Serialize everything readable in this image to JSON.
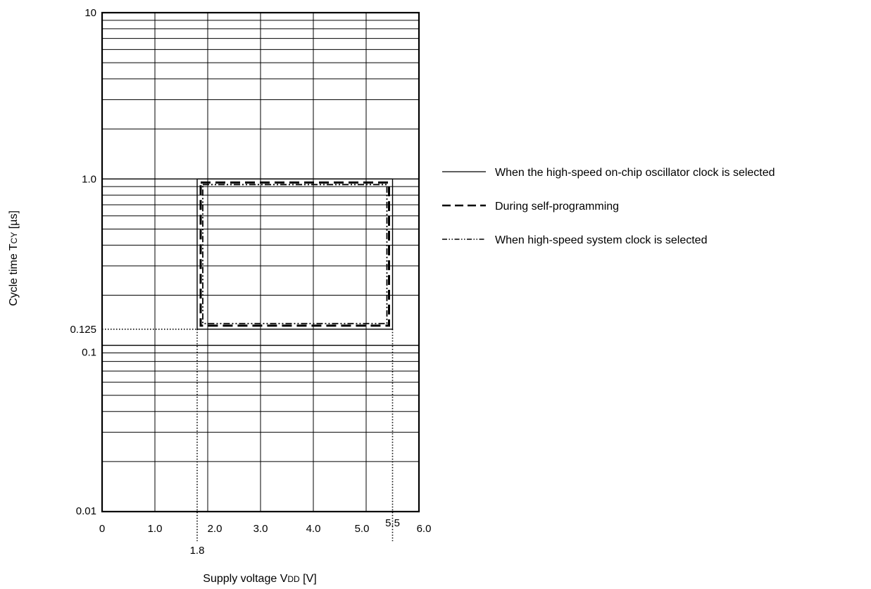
{
  "chart_data": {
    "type": "line",
    "ylabel": "Cycle time T",
    "ylabel_sub": "CY",
    "ylabel_unit": " [µs]",
    "xlabel": "Supply voltage V",
    "xlabel_sub": "DD",
    "xlabel_unit": " [V]",
    "x_axis": {
      "min": 0,
      "max": 6.0,
      "scale": "linear",
      "ticks": [
        {
          "v": 0,
          "label": "0"
        },
        {
          "v": 1,
          "label": "1.0"
        },
        {
          "v": 2,
          "label": "2.0"
        },
        {
          "v": 3,
          "label": "3.0"
        },
        {
          "v": 4,
          "label": "4.0"
        },
        {
          "v": 5,
          "label": "5.0"
        },
        {
          "v": 6,
          "label": "6.0"
        }
      ]
    },
    "y_axis": {
      "min": 0.01,
      "max": 10,
      "scale": "log",
      "ticks": [
        {
          "v": 10,
          "label": "10"
        },
        {
          "v": 1,
          "label": "1.0"
        },
        {
          "v": 0.1,
          "label": "0.1"
        },
        {
          "v": 0.01,
          "label": "0.01"
        }
      ]
    },
    "grid": true,
    "legend_position": "right",
    "series": [
      {
        "name": "When the high-speed on-chip oscillator clock is selected",
        "style": "solid",
        "x": [
          1.8,
          5.5,
          5.5,
          1.8,
          1.8
        ],
        "y": [
          1.0,
          1.0,
          0.125,
          0.125,
          1.0
        ]
      },
      {
        "name": "During self-programming",
        "style": "dashed",
        "x": [
          1.8,
          5.5,
          5.5,
          1.8,
          1.8
        ],
        "y": [
          1.0,
          1.0,
          0.125,
          0.125,
          1.0
        ]
      },
      {
        "name": "When high-speed system clock is selected",
        "style": "dashdotdot",
        "x": [
          1.8,
          5.5,
          5.5,
          1.8,
          1.8
        ],
        "y": [
          1.0,
          1.0,
          0.125,
          0.125,
          1.0
        ]
      }
    ],
    "annotations": [
      {
        "type": "hline",
        "y": 0.125,
        "label": "0.125"
      },
      {
        "type": "vline",
        "x": 1.8,
        "label": "1.8"
      },
      {
        "type": "vline",
        "x": 5.5,
        "label": "5.5"
      }
    ]
  }
}
